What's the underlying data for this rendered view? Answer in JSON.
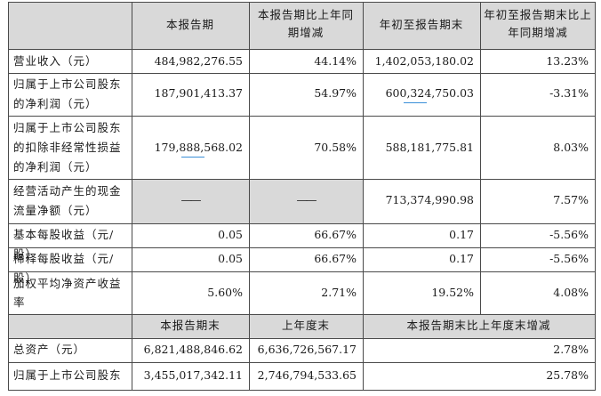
{
  "header": {
    "col1": "本报告期",
    "col2": "本报告期比上年同期增减",
    "col3": "年初至报告期末",
    "col4": "年初至报告期末比上年同期增减"
  },
  "rows": [
    {
      "label": "营业收入（元）",
      "v1": "484,982,276.55",
      "v2": "44.14%",
      "v3": "1,402,053,180.02",
      "v4": "13.23%"
    },
    {
      "label": "归属于上市公司股东的净利润（元）",
      "v1": "187,901,413.37",
      "v2": "54.97%",
      "v3": "600,324,750.03",
      "v4": "-3.31%"
    },
    {
      "label": "归属于上市公司股东的扣除非经常性损益的净利润（元）",
      "v1": "179,888,568.02",
      "v2": "70.58%",
      "v3": "588,181,775.81",
      "v4": "8.03%"
    },
    {
      "label": "经营活动产生的现金流量净额（元）",
      "v1": "——",
      "v2": "——",
      "v3": "713,374,990.98",
      "v4": "7.57%"
    },
    {
      "label": "基本每股收益（元/股）",
      "v1": "0.05",
      "v2": "66.67%",
      "v3": "0.17",
      "v4": "-5.56%"
    },
    {
      "label": "稀释每股收益（元/股）",
      "v1": "0.05",
      "v2": "66.67%",
      "v3": "0.17",
      "v4": "-5.56%"
    },
    {
      "label": "加权平均净资产收益率",
      "v1": "5.60%",
      "v2": "2.71%",
      "v3": "19.52%",
      "v4": "4.08%"
    }
  ],
  "header2": {
    "col1": "本报告期末",
    "col2": "上年度末",
    "col3": "本报告期末比上年度末增减"
  },
  "rows2": [
    {
      "label": "总资产（元）",
      "v1": "6,821,488,846.62",
      "v2": "6,636,726,567.17",
      "v3": "2.78%"
    },
    {
      "label": "归属于上市公司股东",
      "v1": "3,455,017,342.11",
      "v2": "2,746,794,533.65",
      "v3": "25.78%"
    }
  ]
}
